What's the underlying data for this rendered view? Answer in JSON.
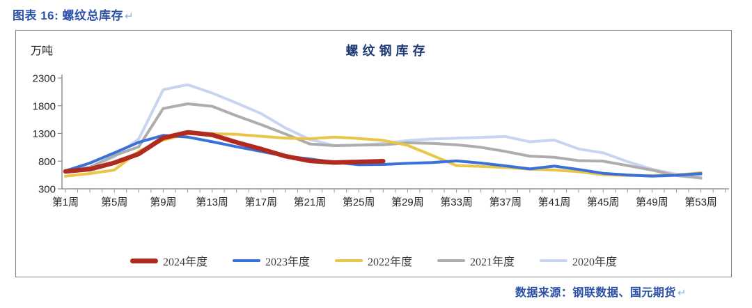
{
  "header": {
    "caption": "图表 16: 螺纹总库存",
    "return_mark": "↵"
  },
  "chart_data": {
    "type": "line",
    "title": "螺纹钢库存",
    "unit_label": "万吨",
    "ylabel": "万吨",
    "ylim": [
      300,
      2300
    ],
    "yticks": [
      300,
      800,
      1300,
      1800,
      2300
    ],
    "x_weeks": [
      1,
      3,
      5,
      7,
      9,
      11,
      13,
      15,
      17,
      19,
      21,
      23,
      25,
      27,
      29,
      31,
      33,
      35,
      37,
      39,
      41,
      43,
      45,
      47,
      49,
      51,
      53
    ],
    "xtick_weeks": [
      1,
      5,
      9,
      13,
      17,
      21,
      25,
      29,
      33,
      37,
      41,
      45,
      49,
      53
    ],
    "xtick_labels": [
      "第1周",
      "第5周",
      "第9周",
      "第13周",
      "第17周",
      "第21周",
      "第25周",
      "第29周",
      "第33周",
      "第37周",
      "第41周",
      "第45周",
      "第49周",
      "第53周"
    ],
    "grid": "off",
    "legend_position": "bottom",
    "series": [
      {
        "name": "2024年度",
        "color": "#b02a20",
        "width": 6.5,
        "values": [
          615,
          655,
          770,
          930,
          1220,
          1320,
          1275,
          1140,
          1020,
          890,
          805,
          775,
          785,
          800
        ]
      },
      {
        "name": "2023年度",
        "color": "#3a70db",
        "width": 4,
        "values": [
          625,
          765,
          950,
          1140,
          1265,
          1235,
          1150,
          1060,
          975,
          890,
          840,
          780,
          735,
          740,
          760,
          775,
          805,
          765,
          715,
          660,
          710,
          650,
          580,
          550,
          530,
          545,
          575
        ]
      },
      {
        "name": "2022年度",
        "color": "#e9c648",
        "width": 4,
        "values": [
          530,
          575,
          640,
          980,
          1180,
          1290,
          1295,
          1285,
          1250,
          1215,
          1205,
          1235,
          1210,
          1175,
          1085,
          905,
          720,
          705,
          685,
          655,
          640,
          610,
          555,
          540,
          540,
          550,
          590
        ]
      },
      {
        "name": "2021年度",
        "color": "#adadad",
        "width": 4,
        "values": [
          620,
          690,
          900,
          1060,
          1750,
          1835,
          1790,
          1620,
          1460,
          1290,
          1110,
          1080,
          1090,
          1095,
          1130,
          1120,
          1095,
          1050,
          975,
          890,
          870,
          810,
          800,
          720,
          640,
          540,
          495
        ]
      },
      {
        "name": "2020年度",
        "color": "#c8d5f0",
        "width": 4,
        "values": [
          600,
          690,
          880,
          1200,
          2090,
          2180,
          2030,
          1850,
          1660,
          1400,
          1190,
          1080,
          1090,
          1120,
          1170,
          1200,
          1215,
          1230,
          1245,
          1150,
          1180,
          1020,
          950,
          790,
          655,
          565,
          550
        ]
      }
    ]
  },
  "footer": {
    "source_text": "数据来源：钢联数据、国元期货",
    "return_mark": "↵"
  }
}
